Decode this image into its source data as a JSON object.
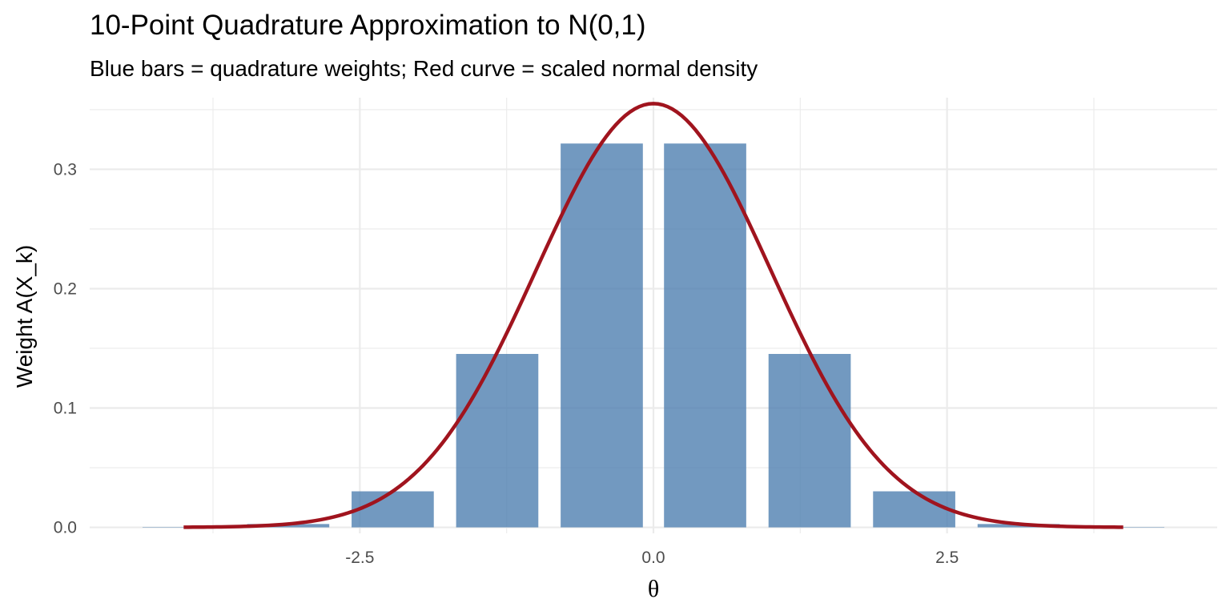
{
  "chart_data": {
    "type": "bar",
    "title": "10-Point Quadrature Approximation to N(0,1)",
    "subtitle": "Blue bars = quadrature weights; Red curve = scaled normal density",
    "xlabel": "θ",
    "ylabel": "Weight A(X_k)",
    "xlim": [
      -4.8,
      4.8
    ],
    "ylim": [
      -0.005,
      0.36
    ],
    "x_ticks": [
      -2.5,
      0.0,
      2.5
    ],
    "x_tick_labels": [
      "-2.5",
      "0.0",
      "2.5"
    ],
    "y_ticks": [
      0.0,
      0.1,
      0.2,
      0.3
    ],
    "y_tick_labels": [
      "0.0",
      "0.1",
      "0.2",
      "0.3"
    ],
    "grid": true,
    "series": [
      {
        "name": "quadrature weights",
        "kind": "bar",
        "color": "#4F7FB0",
        "x": [
          -4.0,
          -3.11,
          -2.22,
          -1.33,
          -0.44,
          0.44,
          1.33,
          2.22,
          3.11,
          4.0
        ],
        "values": [
          0.0001,
          0.0028,
          0.0302,
          0.1453,
          0.3216,
          0.3216,
          0.1453,
          0.0302,
          0.0028,
          0.0001
        ],
        "bar_width": 0.7
      },
      {
        "name": "scaled normal density",
        "kind": "line",
        "color": "#A0141E",
        "function": "normal_pdf",
        "mean": 0,
        "sd": 1,
        "scale": 0.89,
        "x_range": [
          -4,
          4
        ]
      }
    ]
  }
}
